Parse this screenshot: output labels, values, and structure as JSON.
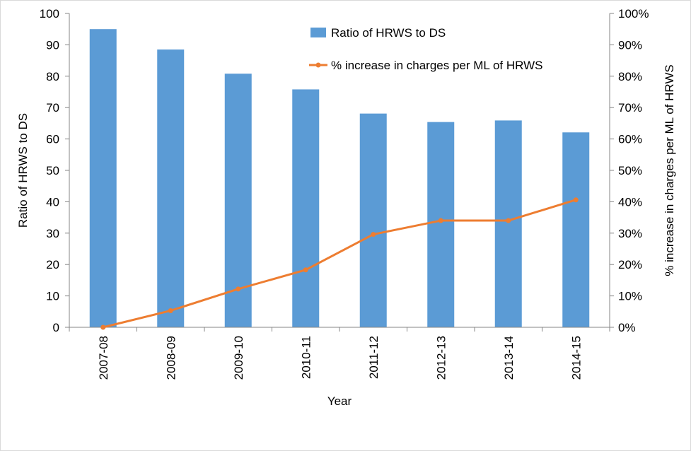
{
  "chart_data": {
    "type": "bar",
    "categories": [
      "2007-08",
      "2008-09",
      "2009-10",
      "2010-11",
      "2011-12",
      "2012-13",
      "2013-14",
      "2014-15"
    ],
    "series": [
      {
        "name": "Ratio of HRWS to DS",
        "type": "bar",
        "axis": "left",
        "color": "#5b9bd5",
        "values": [
          95,
          88.5,
          80.8,
          75.8,
          68.1,
          65.4,
          65.9,
          62.1
        ]
      },
      {
        "name": "% increase in charges per ML of HRWS",
        "type": "line",
        "axis": "right",
        "color": "#ed7d31",
        "values": [
          0,
          5.3,
          12.2,
          18.3,
          29.6,
          34.0,
          34.0,
          40.6
        ]
      }
    ],
    "xlabel": "Year",
    "ylabel": "Ratio of HRWS to DS",
    "y2label": "% increase in charges per ML of HRWS",
    "ylim": [
      0,
      100
    ],
    "y2lim": [
      0,
      100
    ],
    "yticks": [
      "0",
      "10",
      "20",
      "30",
      "40",
      "50",
      "60",
      "70",
      "80",
      "90",
      "100"
    ],
    "y2ticks": [
      "0%",
      "10%",
      "20%",
      "30%",
      "40%",
      "50%",
      "60%",
      "70%",
      "80%",
      "90%",
      "100%"
    ],
    "grid": false,
    "legend_position": "top-center"
  }
}
